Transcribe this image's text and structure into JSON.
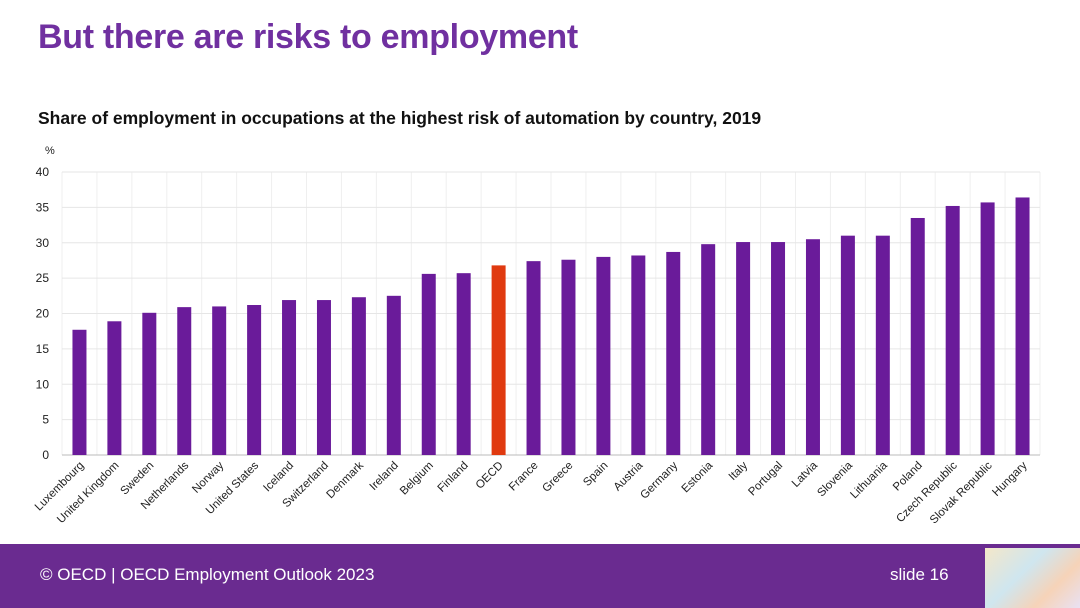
{
  "slide_title": "But there are risks to employment",
  "footer": {
    "source": "© OECD | OECD Employment Outlook 2023",
    "slide": "slide 16"
  },
  "colors": {
    "bar": "#6a1b9a",
    "highlight": "#e03a10",
    "title": "#7030a0",
    "footer_bg": "#6a2b90"
  },
  "chart_data": {
    "type": "bar",
    "title": "Share of employment in occupations at the highest risk of automation by country, 2019",
    "ylabel": "%",
    "xlabel": "",
    "ylim": [
      0,
      40
    ],
    "yticks": [
      0,
      5,
      10,
      15,
      20,
      25,
      30,
      35,
      40
    ],
    "grid": true,
    "highlight": "OECD",
    "categories": [
      "Luxembourg",
      "United Kingdom",
      "Sweden",
      "Netherlands",
      "Norway",
      "United States",
      "Iceland",
      "Switzerland",
      "Denmark",
      "Ireland",
      "Belgium",
      "Finland",
      "OECD",
      "France",
      "Greece",
      "Spain",
      "Austria",
      "Germany",
      "Estonia",
      "Italy",
      "Portugal",
      "Latvia",
      "Slovenia",
      "Lithuania",
      "Poland",
      "Czech Republic",
      "Slovak Republic",
      "Hungary"
    ],
    "values": [
      17.7,
      18.9,
      20.1,
      20.9,
      21.0,
      21.2,
      21.9,
      21.9,
      22.3,
      22.5,
      25.6,
      25.7,
      26.8,
      27.4,
      27.6,
      28.0,
      28.2,
      28.7,
      29.8,
      30.1,
      30.1,
      30.5,
      31.0,
      31.0,
      33.5,
      35.2,
      35.7,
      36.4
    ]
  }
}
